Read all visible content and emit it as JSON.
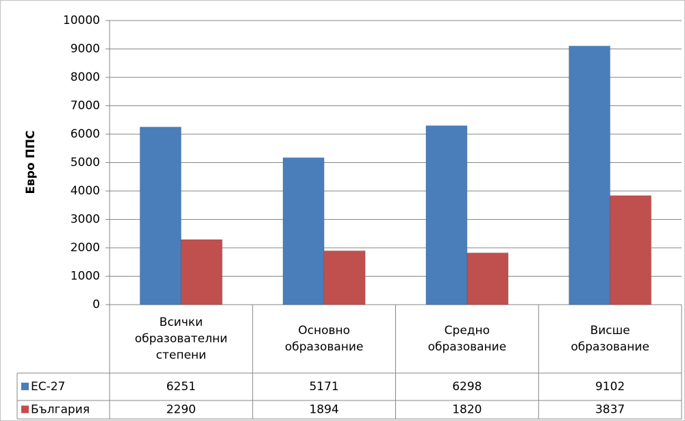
{
  "chart_data": {
    "type": "bar",
    "y_label": "Евро ППС",
    "categories": [
      "Всички образователни степени",
      "Основно образование",
      "Средно образование",
      "Висше образование"
    ],
    "series": [
      {
        "name": "ЕС-27",
        "color": "#4a7ebb",
        "values": [
          6251,
          5171,
          6298,
          9102
        ]
      },
      {
        "name": "България",
        "color": "#c0504d",
        "values": [
          2290,
          1894,
          1820,
          3837
        ]
      }
    ],
    "ylim": [
      0,
      10000
    ],
    "yticks": [
      0,
      1000,
      2000,
      3000,
      4000,
      5000,
      6000,
      7000,
      8000,
      9000,
      10000
    ],
    "grid": true,
    "data_table": true
  }
}
